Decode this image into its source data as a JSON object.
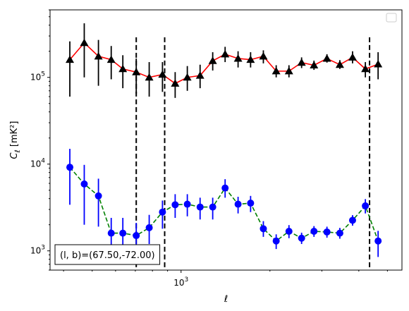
{
  "chart_data": {
    "type": "scatter",
    "title": "",
    "xlabel": "ℓ",
    "ylabel": "C_ℓ [mK²]",
    "xscale": "log",
    "yscale": "log",
    "xlim": [
      360,
      5600
    ],
    "ylim": [
      600,
      600000
    ],
    "x_tick_labels": [
      {
        "value": 1000,
        "label": "10^3"
      }
    ],
    "y_tick_labels": [
      {
        "value": 1000,
        "label": "10^3"
      },
      {
        "value": 10000,
        "label": "10^4"
      },
      {
        "value": 100000,
        "label": "10^5"
      }
    ],
    "grid": false,
    "legend": {
      "placement": "top-right",
      "entries": []
    },
    "vlines": [
      705,
      880,
      4350
    ],
    "annotation": "(l, b)=(67.50,-72.00)",
    "series": [
      {
        "marker": "triangle",
        "color": "#000000",
        "line_color": "#ff0000",
        "line_style": "solid",
        "points": [
          {
            "x": 420,
            "y": 160000,
            "lo": 60000,
            "hi": 260000
          },
          {
            "x": 470,
            "y": 250000,
            "lo": 100000,
            "hi": 420000
          },
          {
            "x": 525,
            "y": 175000,
            "lo": 80000,
            "hi": 270000
          },
          {
            "x": 580,
            "y": 160000,
            "lo": 95000,
            "hi": 230000
          },
          {
            "x": 635,
            "y": 125000,
            "lo": 75000,
            "hi": 180000
          },
          {
            "x": 705,
            "y": 115000,
            "lo": 65000,
            "hi": 165000
          },
          {
            "x": 780,
            "y": 100000,
            "lo": 60000,
            "hi": 150000
          },
          {
            "x": 865,
            "y": 108000,
            "lo": 68000,
            "hi": 150000
          },
          {
            "x": 955,
            "y": 85000,
            "lo": 58000,
            "hi": 115000
          },
          {
            "x": 1050,
            "y": 100000,
            "lo": 70000,
            "hi": 135000
          },
          {
            "x": 1160,
            "y": 105000,
            "lo": 75000,
            "hi": 140000
          },
          {
            "x": 1280,
            "y": 155000,
            "lo": 120000,
            "hi": 195000
          },
          {
            "x": 1410,
            "y": 185000,
            "lo": 150000,
            "hi": 225000
          },
          {
            "x": 1560,
            "y": 165000,
            "lo": 130000,
            "hi": 200000
          },
          {
            "x": 1720,
            "y": 160000,
            "lo": 130000,
            "hi": 195000
          },
          {
            "x": 1900,
            "y": 175000,
            "lo": 145000,
            "hi": 205000
          },
          {
            "x": 2100,
            "y": 118000,
            "lo": 100000,
            "hi": 138000
          },
          {
            "x": 2320,
            "y": 118000,
            "lo": 100000,
            "hi": 138000
          },
          {
            "x": 2560,
            "y": 148000,
            "lo": 128000,
            "hi": 170000
          },
          {
            "x": 2820,
            "y": 138000,
            "lo": 122000,
            "hi": 156000
          },
          {
            "x": 3120,
            "y": 165000,
            "lo": 148000,
            "hi": 185000
          },
          {
            "x": 3450,
            "y": 140000,
            "lo": 125000,
            "hi": 158000
          },
          {
            "x": 3810,
            "y": 170000,
            "lo": 145000,
            "hi": 200000
          },
          {
            "x": 4210,
            "y": 125000,
            "lo": 100000,
            "hi": 150000
          },
          {
            "x": 4650,
            "y": 142000,
            "lo": 95000,
            "hi": 195000
          }
        ]
      },
      {
        "marker": "circle",
        "color": "#0000ff",
        "line_color": "#008000",
        "line_style": "dashed",
        "points": [
          {
            "x": 420,
            "y": 9200,
            "lo": 3400,
            "hi": 15000
          },
          {
            "x": 470,
            "y": 5900,
            "lo": 2000,
            "hi": 9800
          },
          {
            "x": 525,
            "y": 4300,
            "lo": 1900,
            "hi": 6800
          },
          {
            "x": 580,
            "y": 1600,
            "lo": 1000,
            "hi": 2400
          },
          {
            "x": 635,
            "y": 1600,
            "lo": 1000,
            "hi": 2400
          },
          {
            "x": 705,
            "y": 1500,
            "lo": 1000,
            "hi": 2100
          },
          {
            "x": 780,
            "y": 1850,
            "lo": 1200,
            "hi": 2600
          },
          {
            "x": 865,
            "y": 2800,
            "lo": 1800,
            "hi": 3800
          },
          {
            "x": 955,
            "y": 3400,
            "lo": 2400,
            "hi": 4500
          },
          {
            "x": 1050,
            "y": 3450,
            "lo": 2500,
            "hi": 4500
          },
          {
            "x": 1160,
            "y": 3200,
            "lo": 2300,
            "hi": 4100
          },
          {
            "x": 1280,
            "y": 3200,
            "lo": 2300,
            "hi": 4100
          },
          {
            "x": 1410,
            "y": 5300,
            "lo": 4100,
            "hi": 6700
          },
          {
            "x": 1560,
            "y": 3450,
            "lo": 2700,
            "hi": 4200
          },
          {
            "x": 1720,
            "y": 3550,
            "lo": 2800,
            "hi": 4300
          },
          {
            "x": 1900,
            "y": 1800,
            "lo": 1450,
            "hi": 2200
          },
          {
            "x": 2100,
            "y": 1300,
            "lo": 1050,
            "hi": 1550
          },
          {
            "x": 2320,
            "y": 1680,
            "lo": 1400,
            "hi": 1980
          },
          {
            "x": 2560,
            "y": 1400,
            "lo": 1200,
            "hi": 1620
          },
          {
            "x": 2820,
            "y": 1680,
            "lo": 1450,
            "hi": 1930
          },
          {
            "x": 3120,
            "y": 1650,
            "lo": 1420,
            "hi": 1900
          },
          {
            "x": 3450,
            "y": 1600,
            "lo": 1380,
            "hi": 1840
          },
          {
            "x": 3810,
            "y": 2250,
            "lo": 1950,
            "hi": 2580
          },
          {
            "x": 4210,
            "y": 3300,
            "lo": 2700,
            "hi": 3950
          },
          {
            "x": 4650,
            "y": 1300,
            "lo": 850,
            "hi": 1700
          }
        ]
      }
    ]
  }
}
